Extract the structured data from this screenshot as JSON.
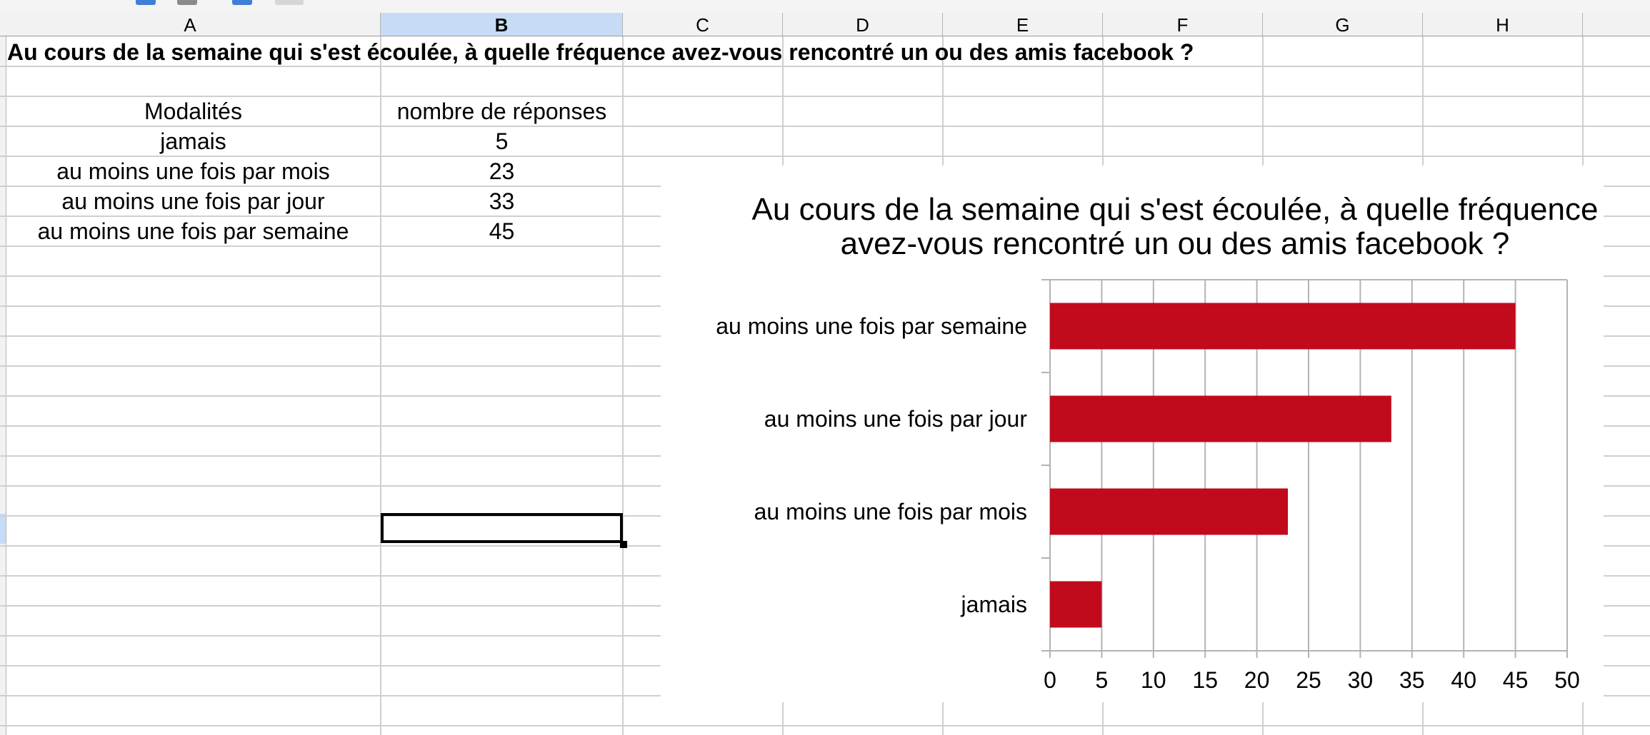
{
  "sheet": {
    "columns": [
      "A",
      "B",
      "C",
      "D",
      "E",
      "F",
      "G",
      "H"
    ],
    "selected_column": "B",
    "title": "Au cours de la semaine qui s'est écoulée, à quelle fréquence avez-vous rencontré un ou des amis facebook ?",
    "table": {
      "headers": [
        "Modalités",
        "nombre de réponses"
      ],
      "rows": [
        [
          "jamais",
          "5"
        ],
        [
          "au moins une fois par mois",
          "23"
        ],
        [
          "au moins une fois par jour",
          "33"
        ],
        [
          "au moins une fois par semaine",
          "45"
        ]
      ]
    }
  },
  "chart_data": {
    "type": "bar",
    "orientation": "horizontal",
    "title_line1": "Au cours de la semaine qui s'est écoulée, à quelle fréquence",
    "title_line2": "avez-vous rencontré un ou des amis facebook ?",
    "categories": [
      "au moins une fois par semaine",
      "au moins une fois par jour",
      "au moins une fois par mois",
      "jamais"
    ],
    "values": [
      45,
      33,
      23,
      5
    ],
    "xlim": [
      0,
      50
    ],
    "xticks": [
      0,
      5,
      10,
      15,
      20,
      25,
      30,
      35,
      40,
      45,
      50
    ],
    "grid": true,
    "bar_color": "#c20a1d",
    "xlabel": "",
    "ylabel": ""
  }
}
